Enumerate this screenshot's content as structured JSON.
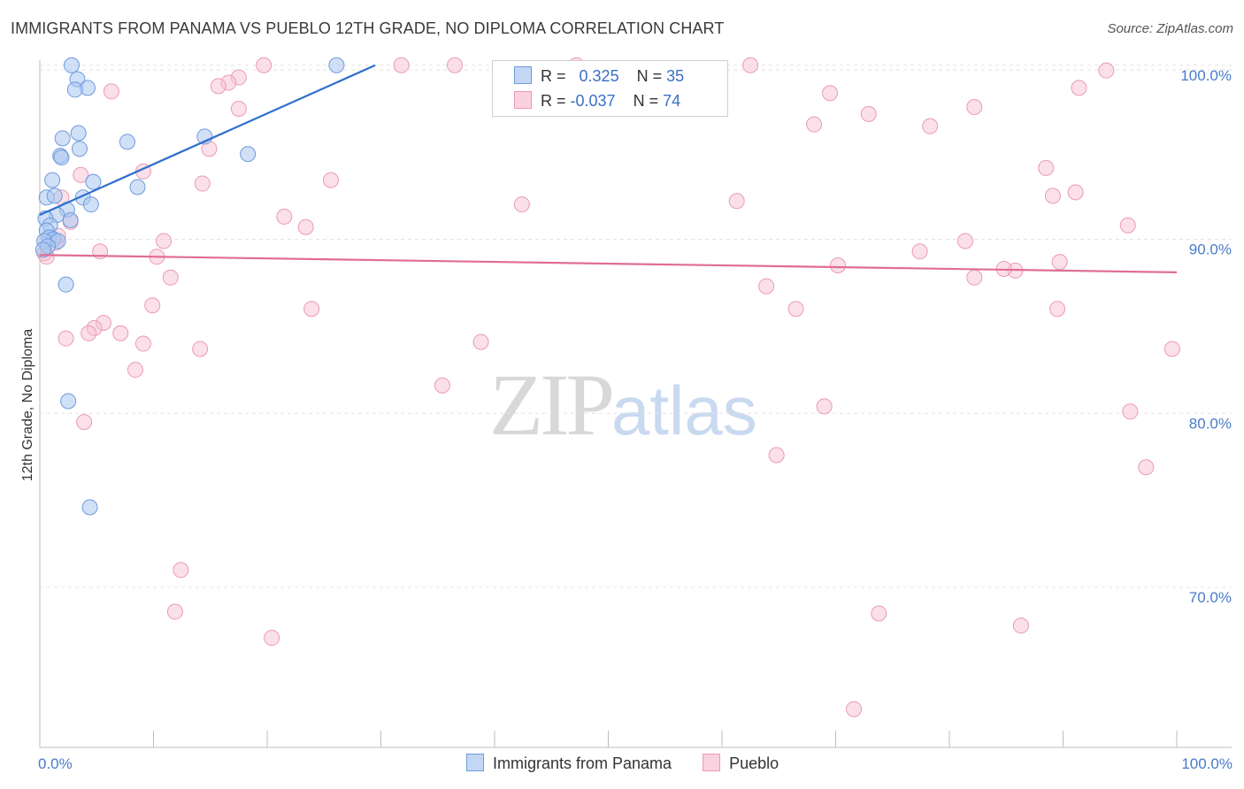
{
  "header": {
    "title": "IMMIGRANTS FROM PANAMA VS PUEBLO 12TH GRADE, NO DIPLOMA CORRELATION CHART",
    "source": "Source: ZipAtlas.com"
  },
  "watermark": {
    "zip": "ZIP",
    "atlas": "atlas"
  },
  "legend": {
    "rows": [
      {
        "r_label": "R = ",
        "r_value": "0.325",
        "n_label": "N = ",
        "n_value": "35"
      },
      {
        "r_label": "R = ",
        "r_value": "-0.037",
        "n_label": "N = ",
        "n_value": "74"
      }
    ]
  },
  "bottom_legend": {
    "series1": "Immigrants from Panama",
    "series2": "Pueblo"
  },
  "chart_data": {
    "type": "scatter",
    "title": "IMMIGRANTS FROM PANAMA VS PUEBLO 12TH GRADE, NO DIPLOMA CORRELATION CHART",
    "xlabel": "",
    "ylabel": "12th Grade, No Diploma",
    "xlim": [
      0,
      100
    ],
    "ylim": [
      60.8,
      100.7
    ],
    "x_tick_labels": [
      "0.0%",
      "100.0%"
    ],
    "y_ticks": [
      {
        "value": 100,
        "label": "100.0%"
      },
      {
        "value": 90,
        "label": "90.0%"
      },
      {
        "value": 80,
        "label": "80.0%"
      },
      {
        "value": 70,
        "label": "70.0%"
      }
    ],
    "colors": {
      "panama_fill": "#a9c6f0",
      "panama_stroke": "#6f9bdc",
      "panama_line": "#2f6fcf",
      "pueblo_fill": "#f7c2d3",
      "pueblo_stroke": "#ec9ab5",
      "pueblo_line": "#e06d96",
      "tick_label": "#4a7bc8",
      "grid": "#e3e3e3"
    },
    "series": [
      {
        "name": "Immigrants from Panama",
        "r": 0.325,
        "n": 35,
        "trend": {
          "x0": 0.0,
          "y0": 91.4,
          "x1": 29.5,
          "y1": 100.0
        },
        "points": [
          {
            "x": 2.8,
            "y": 100.0
          },
          {
            "x": 26.1,
            "y": 100.0
          },
          {
            "x": 3.3,
            "y": 99.2
          },
          {
            "x": 4.2,
            "y": 98.7
          },
          {
            "x": 3.1,
            "y": 98.6
          },
          {
            "x": 3.4,
            "y": 96.1
          },
          {
            "x": 7.7,
            "y": 95.6
          },
          {
            "x": 2.0,
            "y": 95.8
          },
          {
            "x": 14.5,
            "y": 95.9
          },
          {
            "x": 3.5,
            "y": 95.2
          },
          {
            "x": 18.3,
            "y": 94.9
          },
          {
            "x": 1.8,
            "y": 94.8
          },
          {
            "x": 1.9,
            "y": 94.7
          },
          {
            "x": 1.1,
            "y": 93.4
          },
          {
            "x": 4.7,
            "y": 93.3
          },
          {
            "x": 8.6,
            "y": 93.0
          },
          {
            "x": 0.6,
            "y": 92.4
          },
          {
            "x": 1.3,
            "y": 92.5
          },
          {
            "x": 3.8,
            "y": 92.4
          },
          {
            "x": 4.5,
            "y": 92.0
          },
          {
            "x": 2.4,
            "y": 91.7
          },
          {
            "x": 1.5,
            "y": 91.4
          },
          {
            "x": 0.5,
            "y": 91.2
          },
          {
            "x": 2.7,
            "y": 91.1
          },
          {
            "x": 0.9,
            "y": 90.8
          },
          {
            "x": 0.6,
            "y": 90.5
          },
          {
            "x": 0.8,
            "y": 90.1
          },
          {
            "x": 1.2,
            "y": 90.0
          },
          {
            "x": 0.4,
            "y": 89.9
          },
          {
            "x": 1.6,
            "y": 89.9
          },
          {
            "x": 0.7,
            "y": 89.6
          },
          {
            "x": 2.3,
            "y": 87.4
          },
          {
            "x": 2.5,
            "y": 80.7
          },
          {
            "x": 4.4,
            "y": 74.6
          },
          {
            "x": 0.3,
            "y": 89.4
          }
        ]
      },
      {
        "name": "Pueblo",
        "r": -0.037,
        "n": 74,
        "trend": {
          "x0": 0.0,
          "y0": 89.1,
          "x1": 100.0,
          "y1": 88.1
        },
        "points": [
          {
            "x": 19.7,
            "y": 100.0
          },
          {
            "x": 31.8,
            "y": 100.0
          },
          {
            "x": 36.5,
            "y": 100.0
          },
          {
            "x": 47.2,
            "y": 100.0
          },
          {
            "x": 62.5,
            "y": 100.0
          },
          {
            "x": 93.8,
            "y": 99.7
          },
          {
            "x": 17.5,
            "y": 99.3
          },
          {
            "x": 16.6,
            "y": 99.0
          },
          {
            "x": 15.7,
            "y": 98.8
          },
          {
            "x": 6.3,
            "y": 98.5
          },
          {
            "x": 91.4,
            "y": 98.7
          },
          {
            "x": 69.5,
            "y": 98.4
          },
          {
            "x": 17.5,
            "y": 97.5
          },
          {
            "x": 82.2,
            "y": 97.6
          },
          {
            "x": 72.9,
            "y": 97.2
          },
          {
            "x": 68.1,
            "y": 96.6
          },
          {
            "x": 78.3,
            "y": 96.5
          },
          {
            "x": 14.9,
            "y": 95.2
          },
          {
            "x": 88.5,
            "y": 94.1
          },
          {
            "x": 9.1,
            "y": 93.9
          },
          {
            "x": 3.6,
            "y": 93.7
          },
          {
            "x": 25.6,
            "y": 93.4
          },
          {
            "x": 14.3,
            "y": 93.2
          },
          {
            "x": 91.1,
            "y": 92.7
          },
          {
            "x": 89.1,
            "y": 92.5
          },
          {
            "x": 1.9,
            "y": 92.4
          },
          {
            "x": 61.3,
            "y": 92.2
          },
          {
            "x": 42.4,
            "y": 92.0
          },
          {
            "x": 21.5,
            "y": 91.3
          },
          {
            "x": 2.7,
            "y": 91.0
          },
          {
            "x": 23.4,
            "y": 90.7
          },
          {
            "x": 95.7,
            "y": 90.8
          },
          {
            "x": 1.4,
            "y": 89.8
          },
          {
            "x": 10.9,
            "y": 89.9
          },
          {
            "x": 81.4,
            "y": 89.9
          },
          {
            "x": 5.3,
            "y": 89.3
          },
          {
            "x": 77.4,
            "y": 89.3
          },
          {
            "x": 10.3,
            "y": 89.0
          },
          {
            "x": 0.4,
            "y": 89.2
          },
          {
            "x": 89.7,
            "y": 88.7
          },
          {
            "x": 70.2,
            "y": 88.5
          },
          {
            "x": 85.8,
            "y": 88.2
          },
          {
            "x": 84.8,
            "y": 88.3
          },
          {
            "x": 11.5,
            "y": 87.8
          },
          {
            "x": 82.2,
            "y": 87.8
          },
          {
            "x": 63.9,
            "y": 87.3
          },
          {
            "x": 9.9,
            "y": 86.2
          },
          {
            "x": 23.9,
            "y": 86.0
          },
          {
            "x": 66.5,
            "y": 86.0
          },
          {
            "x": 89.5,
            "y": 86.0
          },
          {
            "x": 5.6,
            "y": 85.2
          },
          {
            "x": 4.8,
            "y": 84.9
          },
          {
            "x": 7.1,
            "y": 84.6
          },
          {
            "x": 4.3,
            "y": 84.6
          },
          {
            "x": 2.3,
            "y": 84.3
          },
          {
            "x": 38.8,
            "y": 84.1
          },
          {
            "x": 9.1,
            "y": 84.0
          },
          {
            "x": 14.1,
            "y": 83.7
          },
          {
            "x": 99.6,
            "y": 83.7
          },
          {
            "x": 8.4,
            "y": 82.5
          },
          {
            "x": 35.4,
            "y": 81.6
          },
          {
            "x": 69.0,
            "y": 80.4
          },
          {
            "x": 95.9,
            "y": 80.1
          },
          {
            "x": 3.9,
            "y": 79.5
          },
          {
            "x": 64.8,
            "y": 77.6
          },
          {
            "x": 97.3,
            "y": 76.9
          },
          {
            "x": 12.4,
            "y": 71.0
          },
          {
            "x": 11.9,
            "y": 68.6
          },
          {
            "x": 20.4,
            "y": 67.1
          },
          {
            "x": 73.8,
            "y": 68.5
          },
          {
            "x": 86.3,
            "y": 67.8
          },
          {
            "x": 71.6,
            "y": 63.0
          },
          {
            "x": 0.6,
            "y": 89.0
          },
          {
            "x": 1.6,
            "y": 90.2
          }
        ]
      }
    ]
  }
}
